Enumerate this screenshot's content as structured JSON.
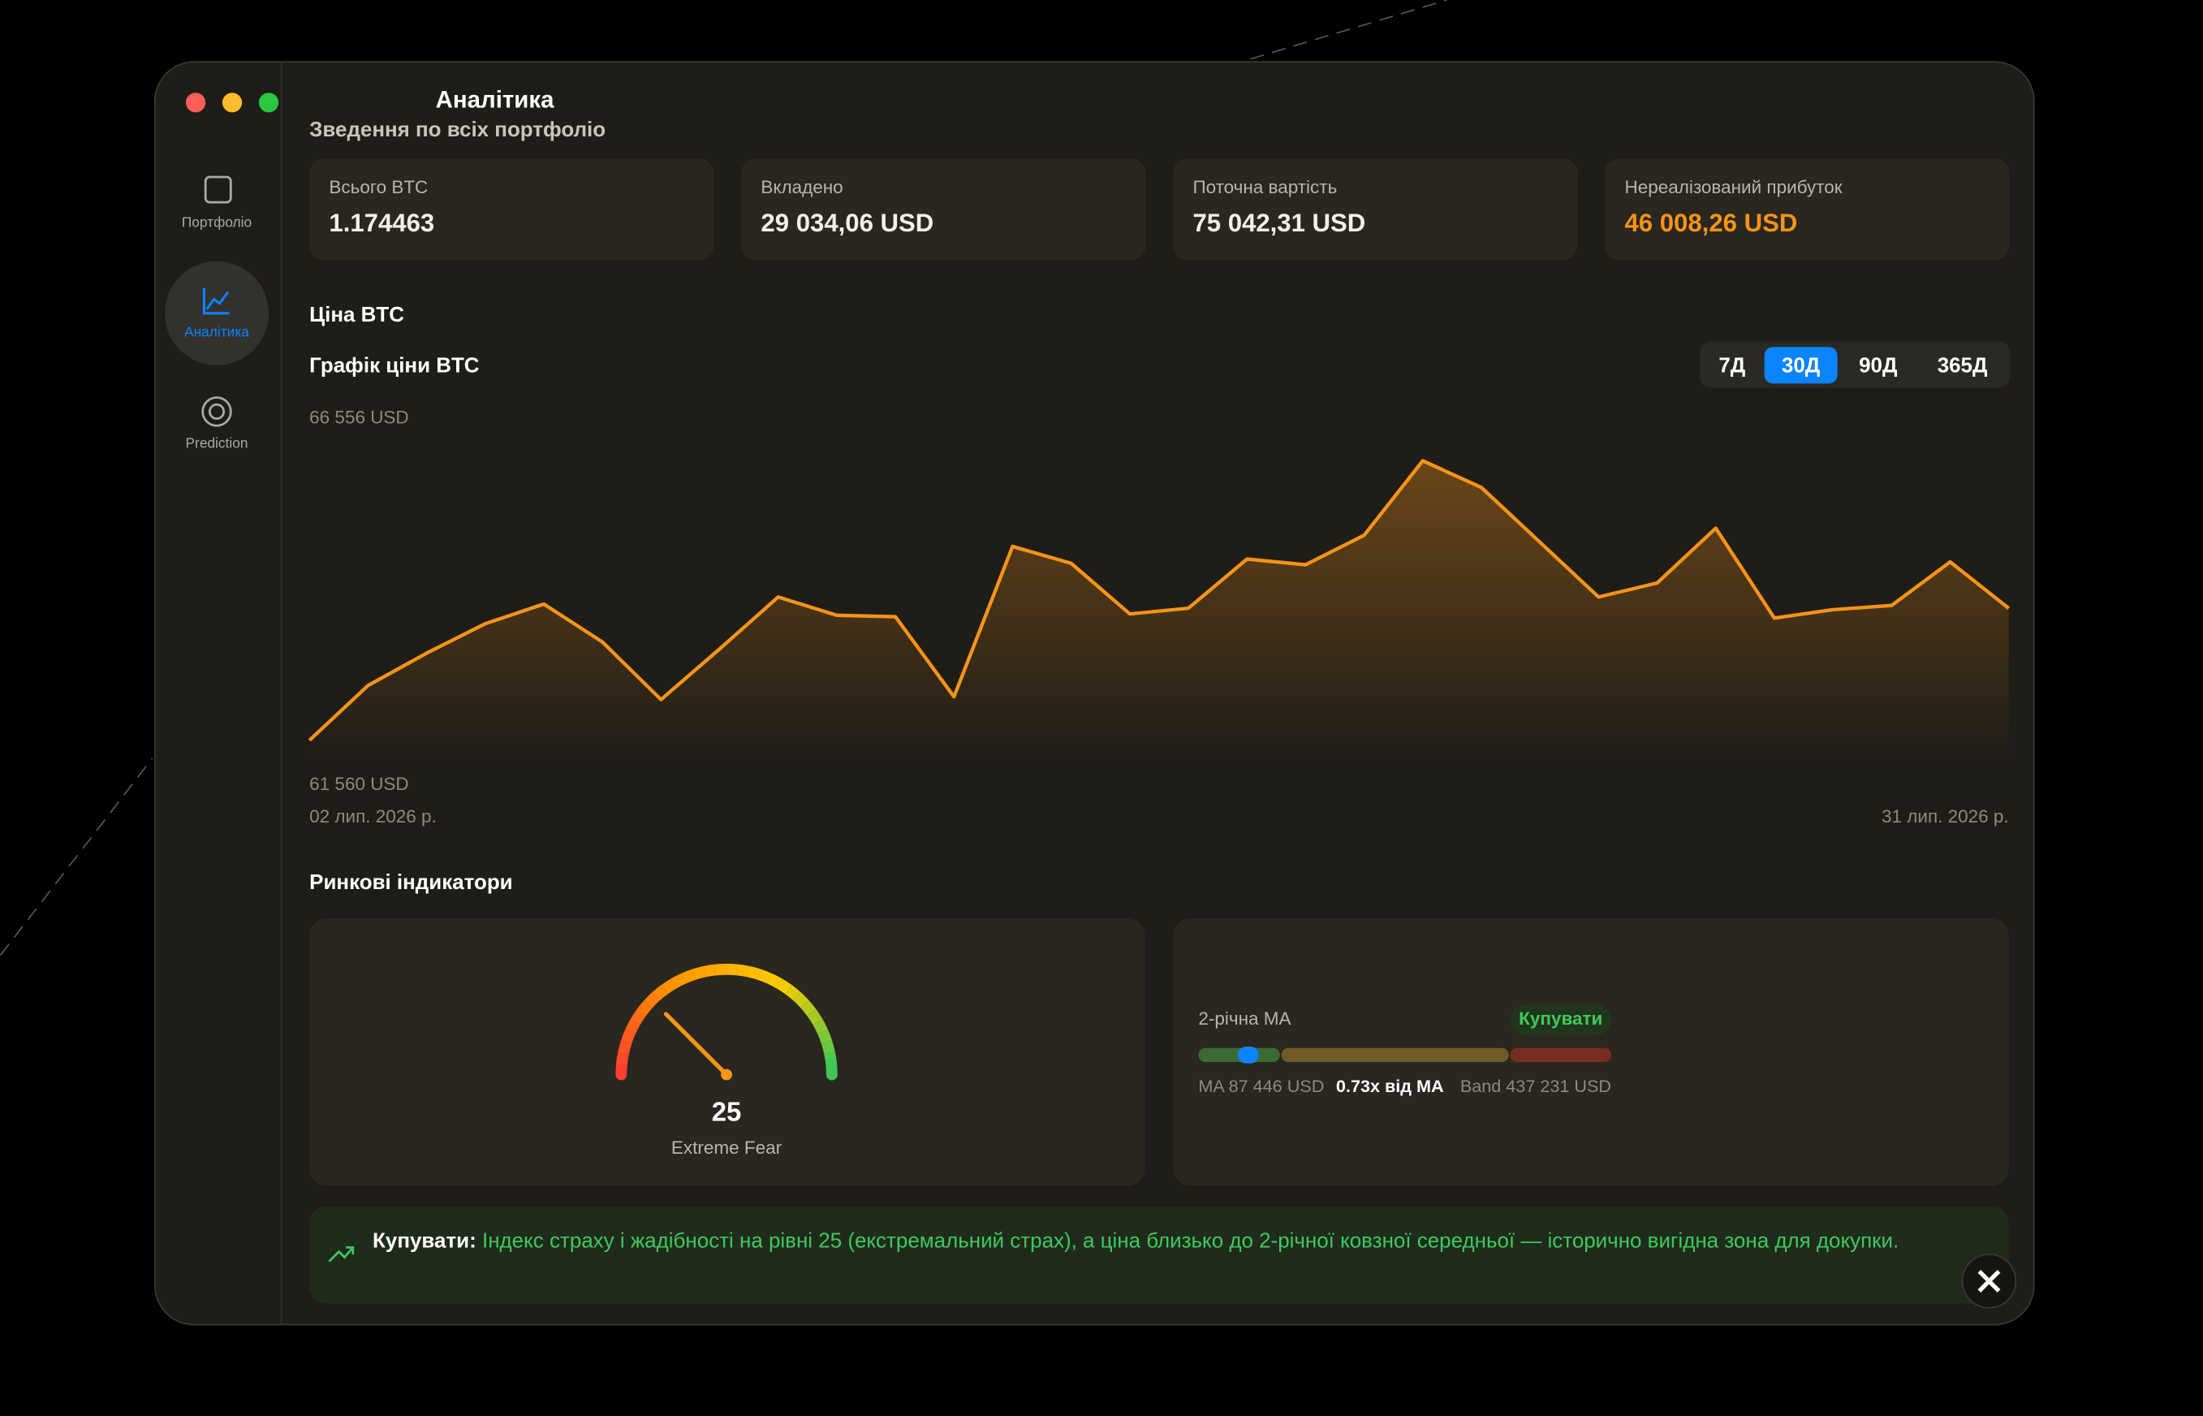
{
  "window": {
    "title": "Аналітика",
    "subtitle": "Зведення по всіх портфоліо"
  },
  "sidebar": [
    "Портфоліо",
    "Аналітика",
    "Prediction"
  ],
  "stats": [
    {
      "label": "Всього BTC",
      "value": "1.174463"
    },
    {
      "label": "Вкладено",
      "value": "29 034,06 USD"
    },
    {
      "label": "Поточна вартість",
      "value": "75 042,31 USD"
    },
    {
      "label": "Нереалізований прибуток",
      "value": "46 008,26 USD"
    }
  ],
  "price_section": "Ціна BTC",
  "chart_data": {
    "type": "line",
    "title": "Графік ціни BTC",
    "categories": [
      "02 лип. 2026 р.",
      null,
      null,
      null,
      null,
      null,
      null,
      null,
      null,
      null,
      null,
      null,
      null,
      null,
      null,
      null,
      null,
      null,
      null,
      null,
      null,
      null,
      null,
      null,
      null,
      null,
      null,
      null,
      null,
      "31 лип. 2026 р."
    ],
    "values": [
      61560,
      62539,
      63117,
      63644,
      63995,
      63317,
      62288,
      63192,
      64121,
      63794,
      63769,
      62338,
      65025,
      64723,
      63819,
      63920,
      64799,
      64698,
      65225,
      66556,
      66079,
      65100,
      64121,
      64372,
      65351,
      63744,
      63895,
      63970,
      64748,
      63920
    ],
    "color": "#f7931a",
    "ylim": [
      61560,
      66556
    ],
    "yticks": [
      {
        "value": 61560,
        "label": "61 560 USD"
      },
      {
        "value": 66556,
        "label": "66 556 USD"
      }
    ]
  },
  "periods": [
    "7Д",
    "30Д",
    "90Д",
    "365Д"
  ],
  "selected_period": 1,
  "indicators": {
    "title": "Ринкові індикатори",
    "fear_greed": {
      "value": 25,
      "label": "Extreme Fear",
      "range": [
        0,
        100
      ]
    },
    "ma": {
      "title": "2-річна MA",
      "signal": "Купувати",
      "ma": "MA 87 446 USD",
      "ratio": "0.73x від MA",
      "band": "Band 437 231 USD"
    }
  },
  "banner": {
    "label": "Купувати:",
    "text": "Індекс страху і жадібності на рівні 25 (екстремальний страх), а ціна близько до 2-річної ковзної середньої — історично вигідна зона для докупки."
  }
}
